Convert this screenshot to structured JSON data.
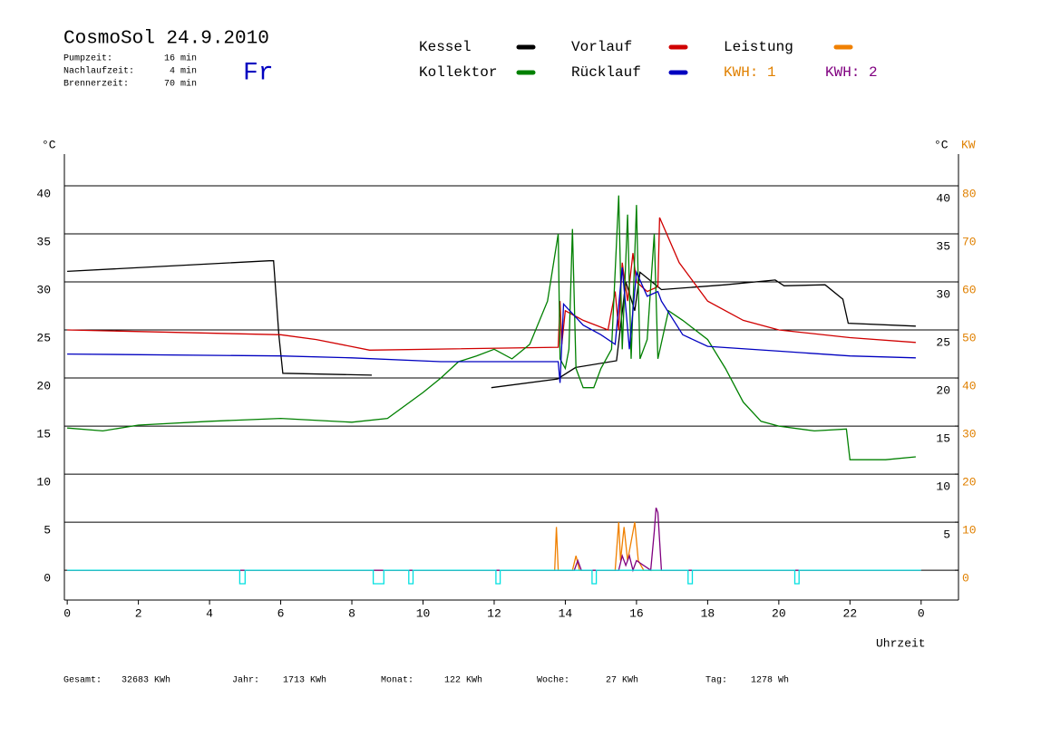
{
  "chart_data": {
    "type": "line",
    "title": "CosmoSol 24.9.2010",
    "weekday": "Fr",
    "info": [
      {
        "label": "Pumpzeit:",
        "value": "16 min"
      },
      {
        "label": "Nachlaufzeit:",
        "value": "4 min"
      },
      {
        "label": "Brennerzeit:",
        "value": "70 min"
      }
    ],
    "kwh_labels": [
      {
        "text": "KWH: 1",
        "color": "#e08000"
      },
      {
        "text": "KWH: 2",
        "color": "#800080"
      }
    ],
    "ylabel": "°C",
    "y2label_unit": "°C",
    "y2label": "KW",
    "xlabel": "Uhrzeit",
    "xlim": [
      -0.08,
      25.05
    ],
    "xticks": [
      0,
      2,
      4,
      6,
      8,
      10,
      12,
      14,
      16,
      18,
      20,
      22,
      {
        "value": 24,
        "label": "0"
      }
    ],
    "ylim": [
      -3.1,
      43.3
    ],
    "yticks": [
      0,
      5,
      10,
      15,
      20,
      25,
      30,
      35,
      40
    ],
    "y2lim": [
      -6.2,
      86.6
    ],
    "y2ticks": [
      0,
      10,
      20,
      30,
      40,
      50,
      60,
      70,
      80
    ],
    "grid": true,
    "series": [
      {
        "name": "Kessel",
        "color": "#000000",
        "x": [
          0,
          5.68,
          5.8,
          5.95,
          6.06,
          8.56,
          10,
          11.92,
          13.78,
          14.29,
          15.44,
          15.7,
          15.95,
          16.1,
          16.7,
          18.5,
          19.9,
          20.15,
          21.3,
          21.8,
          21.95,
          23.85
        ],
        "values": [
          31.1,
          32.2,
          32.2,
          24.4,
          20.5,
          20.3,
          null,
          19.0,
          19.9,
          21.1,
          21.8,
          30,
          27,
          31,
          29.2,
          29.7,
          30.2,
          29.6,
          29.7,
          28.2,
          25.7,
          25.4
        ]
      },
      {
        "name": "Vorlauf",
        "color": "#d00000",
        "x": [
          0,
          6,
          7,
          8.5,
          13.8,
          13.85,
          13.9,
          14,
          14.5,
          15.2,
          15.4,
          15.5,
          15.6,
          15.75,
          15.9,
          16,
          16.3,
          16.6,
          16.65,
          17.2,
          18,
          19,
          20,
          22,
          23.85
        ],
        "values": [
          25.0,
          24.5,
          24,
          22.9,
          23.2,
          28,
          23.5,
          27,
          26,
          25,
          29,
          25,
          32,
          28,
          33,
          30,
          29,
          29.5,
          36.7,
          32,
          28,
          26,
          25,
          24.2,
          23.7
        ]
      },
      {
        "name": "Leistung",
        "color": "#f08000",
        "axis": "y2",
        "x": [
          0,
          13.7,
          13.75,
          13.8,
          14.2,
          14.3,
          14.4,
          15.4,
          15.5,
          15.55,
          15.65,
          15.75,
          15.95,
          16.05,
          16.2,
          24
        ],
        "values": [
          0,
          0,
          9,
          0,
          0,
          3,
          0,
          0,
          10,
          2,
          9,
          2,
          10,
          2,
          0,
          0
        ]
      },
      {
        "name": "Kollektor",
        "color": "#008000",
        "x": [
          0,
          1,
          2,
          4,
          6,
          8,
          9,
          10,
          10.5,
          11,
          11.5,
          12,
          12.5,
          13,
          13.5,
          13.8,
          13.85,
          14,
          14.1,
          14.2,
          14.3,
          14.5,
          14.8,
          15,
          15.3,
          15.5,
          15.6,
          15.75,
          15.85,
          16,
          16.1,
          16.3,
          16.5,
          16.6,
          16.9,
          17.3,
          18,
          18.5,
          19,
          19.5,
          20,
          21,
          21.9,
          22,
          23,
          23.85
        ],
        "values": [
          14.8,
          14.5,
          15.1,
          15.5,
          15.8,
          15.4,
          15.8,
          18.5,
          20,
          21.7,
          22.3,
          23,
          22,
          23.5,
          28,
          35,
          22,
          21,
          23,
          35.5,
          21,
          19,
          19,
          21,
          23,
          39,
          23,
          37,
          22,
          38,
          22,
          24,
          35,
          22,
          27,
          26,
          24,
          21,
          17.5,
          15.5,
          15,
          14.5,
          14.7,
          11.5,
          11.5,
          11.8
        ]
      },
      {
        "name": "Rücklauf",
        "color": "#0000c0",
        "x": [
          0,
          6,
          8,
          10.5,
          13.8,
          13.85,
          13.95,
          14.5,
          15,
          15.4,
          15.6,
          15.8,
          16,
          16.3,
          16.6,
          16.7,
          17.3,
          18,
          20,
          22,
          23.85
        ],
        "values": [
          22.5,
          22.3,
          22.1,
          21.7,
          21.7,
          19.5,
          27.7,
          25.5,
          24.5,
          23.5,
          31.5,
          23,
          31,
          28.5,
          29,
          28,
          24.5,
          23.3,
          22.8,
          22.3,
          22.1
        ]
      },
      {
        "color": "#800080",
        "axis": "y2",
        "x": [
          0,
          14.25,
          14.35,
          14.45,
          15.5,
          15.6,
          15.7,
          15.8,
          15.9,
          16.0,
          16.4,
          16.5,
          16.55,
          16.6,
          16.7,
          24
        ],
        "values": [
          0,
          0,
          2,
          0,
          0,
          3,
          1,
          3,
          0,
          2,
          0,
          8,
          13,
          12,
          0,
          0
        ]
      },
      {
        "color": "#00e0e0",
        "x": [
          0,
          4.85,
          4.85,
          5.0,
          5.0,
          8.6,
          8.6,
          8.9,
          8.9,
          9.6,
          9.6,
          9.72,
          9.72,
          12.05,
          12.05,
          12.17,
          12.17,
          14.75,
          14.75,
          14.87,
          14.87,
          17.45,
          17.45,
          17.57,
          17.57,
          20.45,
          20.45,
          20.57,
          20.57,
          24
        ],
        "values": [
          0,
          0,
          -1.4,
          -1.4,
          0,
          0,
          -1.4,
          -1.4,
          0,
          0,
          -1.4,
          -1.4,
          0,
          0,
          -1.4,
          -1.4,
          0,
          0,
          -1.4,
          -1.4,
          0,
          0,
          -1.4,
          -1.4,
          0,
          0,
          -1.4,
          -1.4,
          0,
          0
        ]
      }
    ],
    "totals": [
      {
        "label": "Gesamt:",
        "value": "32683 KWh"
      },
      {
        "label": "Jahr:",
        "value": "1713 KWh"
      },
      {
        "label": "Monat:",
        "value": "122 KWh"
      },
      {
        "label": "Woche:",
        "value": "27 KWh"
      },
      {
        "label": "Tag:",
        "value": "1278 Wh"
      }
    ]
  }
}
